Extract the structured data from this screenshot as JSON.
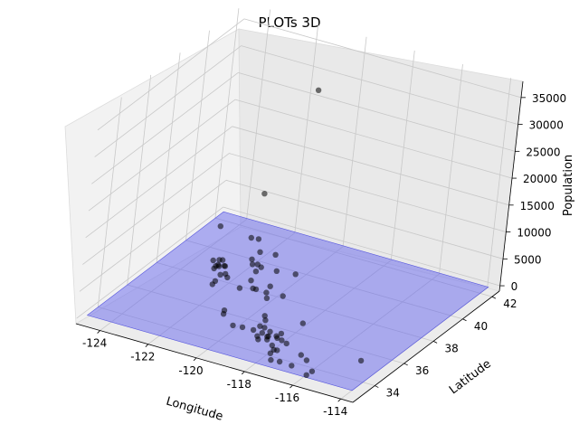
{
  "chart_data": {
    "type": "scatter",
    "projection": "3d",
    "title": "PLOTs 3D",
    "xlabel": "Longitude",
    "ylabel": "Latitude",
    "zlabel": "Population",
    "x_ticks": [
      "-124",
      "-122",
      "-120",
      "-118",
      "-116",
      "-114"
    ],
    "y_ticks": [
      "34",
      "36",
      "38",
      "40",
      "42"
    ],
    "z_ticks": [
      "0",
      "5000",
      "10000",
      "15000",
      "20000",
      "25000",
      "30000",
      "35000"
    ],
    "xlim": [
      -125,
      -113.5
    ],
    "ylim": [
      32.5,
      42.5
    ],
    "zlim": [
      -1000,
      38000
    ],
    "grid": true,
    "colors": {
      "points": "#000000",
      "plane": "#6666ee",
      "pane": "#f2f2f2",
      "grid": "#c8c8c8"
    },
    "plane": {
      "z": 0,
      "description_value": 0
    },
    "series": [
      {
        "points": [
          [
            -118.3,
            34.05,
            2600
          ],
          [
            -118.2,
            34.0,
            3800
          ],
          [
            -118.4,
            33.9,
            2200
          ],
          [
            -118.1,
            34.1,
            1500
          ],
          [
            -117.9,
            33.8,
            3000
          ],
          [
            -117.2,
            32.8,
            2800
          ],
          [
            -117.1,
            32.7,
            1900
          ],
          [
            -117.0,
            32.9,
            3400
          ],
          [
            -116.9,
            33.0,
            1200
          ],
          [
            -117.3,
            33.2,
            2500
          ],
          [
            -117.6,
            33.6,
            2100
          ],
          [
            -117.4,
            33.9,
            2700
          ],
          [
            -117.3,
            34.1,
            1800
          ],
          [
            -116.5,
            33.8,
            1300
          ],
          [
            -116.2,
            33.7,
            900
          ],
          [
            -122.4,
            37.8,
            2300
          ],
          [
            -122.3,
            37.9,
            3100
          ],
          [
            -122.1,
            37.7,
            2700
          ],
          [
            -121.9,
            37.4,
            3500
          ],
          [
            -122.0,
            37.3,
            2000
          ],
          [
            -122.5,
            37.7,
            1700
          ],
          [
            -122.2,
            37.5,
            2900
          ],
          [
            -121.8,
            37.3,
            2400
          ],
          [
            -122.6,
            38.0,
            1400
          ],
          [
            -122.7,
            38.4,
            1600
          ],
          [
            -121.5,
            38.6,
            2800
          ],
          [
            -121.4,
            38.5,
            2200
          ],
          [
            -121.3,
            38.7,
            1900
          ],
          [
            -121.2,
            38.8,
            1300
          ],
          [
            -120.9,
            37.6,
            1700
          ],
          [
            -119.8,
            36.8,
            2500
          ],
          [
            -119.7,
            36.7,
            1800
          ],
          [
            -120.5,
            37.3,
            1200
          ],
          [
            -119.0,
            35.4,
            2100
          ],
          [
            -118.9,
            35.3,
            1600
          ],
          [
            -121.0,
            37.0,
            1400
          ],
          [
            -121.9,
            36.6,
            1800
          ],
          [
            -120.6,
            35.3,
            1300
          ],
          [
            -119.7,
            34.4,
            1500
          ],
          [
            -119.2,
            34.2,
            2200
          ],
          [
            -123.0,
            38.5,
            900
          ],
          [
            -124.1,
            40.8,
            1100
          ],
          [
            -122.4,
            40.6,
            1300
          ],
          [
            -121.8,
            39.7,
            1500
          ],
          [
            -120.0,
            39.2,
            700
          ],
          [
            -118.5,
            34.2,
            3300
          ],
          [
            -118.0,
            33.9,
            2600
          ],
          [
            -117.8,
            33.7,
            4200
          ],
          [
            -118.3,
            33.8,
            1900
          ],
          [
            -117.5,
            34.0,
            3600
          ],
          [
            -121.6,
            37.1,
            2400
          ],
          [
            -122.0,
            36.97,
            1500
          ],
          [
            -120.4,
            34.9,
            1700
          ],
          [
            -118.8,
            34.3,
            2000
          ],
          [
            -117.7,
            34.1,
            2300
          ],
          [
            -116.4,
            33.0,
            1100
          ],
          [
            -115.5,
            32.9,
            1400
          ],
          [
            -115.6,
            32.7,
            1000
          ],
          [
            -114.6,
            34.8,
            600
          ],
          [
            -117.9,
            34.4,
            1800
          ],
          [
            -121.3,
            38.0,
            8300
          ],
          [
            -118.8,
            34.0,
            13500
          ],
          [
            -117.7,
            33.5,
            16000
          ],
          [
            -120.3,
            38.1,
            6200
          ],
          [
            -117.0,
            34.6,
            4900
          ],
          [
            -119.4,
            36.3,
            5200
          ],
          [
            -118.9,
            34.1,
            10000
          ],
          [
            -120.5,
            40.3,
            32000
          ],
          [
            -118.7,
            33.8,
            28500
          ],
          [
            -118.2,
            35.1,
            7400
          ]
        ]
      }
    ]
  }
}
